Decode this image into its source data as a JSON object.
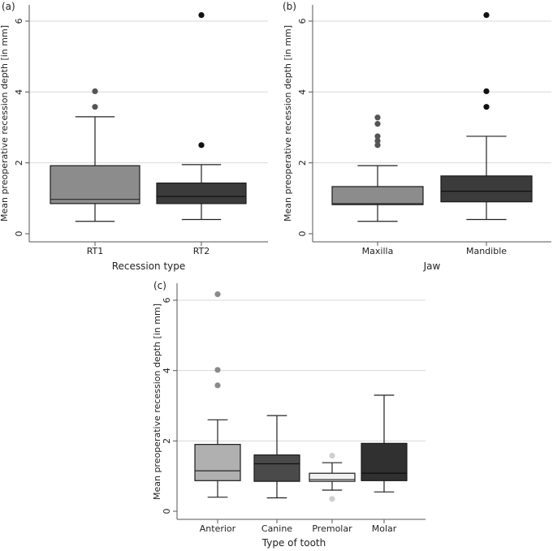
{
  "chart_data": [
    {
      "type": "boxplot",
      "panel_label": "(a)",
      "title": "",
      "xlabel": "Recession type",
      "ylabel": "Mean preoperative recession depth [in mm]",
      "ylim": [
        0,
        6.2
      ],
      "yticks": [
        0,
        2,
        4,
        6
      ],
      "grid": true,
      "categories": [
        "RT1",
        "RT2"
      ],
      "boxes": [
        {
          "name": "RT1",
          "whisker_low": 0.35,
          "q1": 0.85,
          "median": 0.97,
          "q3": 1.92,
          "whisker_high": 3.3,
          "outliers": [
            3.58,
            4.02
          ],
          "color": "#8c8c8c",
          "outlier_color": "#555555"
        },
        {
          "name": "RT2",
          "whisker_low": 0.4,
          "q1": 0.85,
          "median": 1.05,
          "q3": 1.43,
          "whisker_high": 1.95,
          "outliers": [
            2.5,
            6.17
          ],
          "color": "#3b3b3b",
          "outlier_color": "#111111"
        }
      ]
    },
    {
      "type": "boxplot",
      "panel_label": "(b)",
      "title": "",
      "xlabel": "Jaw",
      "ylabel": "Mean preoperative recession depth [in mm]",
      "ylim": [
        0,
        6.2
      ],
      "yticks": [
        0,
        2,
        4,
        6
      ],
      "grid": true,
      "categories": [
        "Maxilla",
        "Mandible"
      ],
      "boxes": [
        {
          "name": "Maxilla",
          "whisker_low": 0.35,
          "q1": 0.82,
          "median": 0.85,
          "q3": 1.33,
          "whisker_high": 1.92,
          "outliers": [
            2.5,
            2.62,
            2.75,
            3.1,
            3.28
          ],
          "color": "#8c8c8c",
          "outlier_color": "#555555"
        },
        {
          "name": "Mandible",
          "whisker_low": 0.4,
          "q1": 0.9,
          "median": 1.2,
          "q3": 1.63,
          "whisker_high": 2.75,
          "outliers": [
            3.58,
            4.02,
            6.17
          ],
          "color": "#3b3b3b",
          "outlier_color": "#111111"
        }
      ]
    },
    {
      "type": "boxplot",
      "panel_label": "(c)",
      "title": "",
      "xlabel": "Type of tooth",
      "ylabel": "Mean preoperative recession depth [in mm]",
      "ylim": [
        0,
        6.2
      ],
      "yticks": [
        0,
        2,
        4,
        6
      ],
      "grid": true,
      "categories": [
        "Anterior",
        "Canine",
        "Premolar",
        "Molar"
      ],
      "boxes": [
        {
          "name": "Anterior",
          "whisker_low": 0.4,
          "q1": 0.87,
          "median": 1.15,
          "q3": 1.9,
          "whisker_high": 2.6,
          "outliers": [
            3.58,
            4.02,
            6.17
          ],
          "color": "#b0b0b0",
          "outlier_color": "#8a8a8a"
        },
        {
          "name": "Canine",
          "whisker_low": 0.38,
          "q1": 0.85,
          "median": 1.35,
          "q3": 1.6,
          "whisker_high": 2.72,
          "outliers": [],
          "color": "#4a4a4a",
          "outlier_color": "#333333"
        },
        {
          "name": "Premolar",
          "whisker_low": 0.6,
          "q1": 0.85,
          "median": 0.9,
          "q3": 1.08,
          "whisker_high": 1.38,
          "outliers": [
            0.35,
            1.58
          ],
          "color": "#f2f2f2",
          "outlier_color": "#cfcfcf"
        },
        {
          "name": "Molar",
          "whisker_low": 0.55,
          "q1": 0.87,
          "median": 1.08,
          "q3": 1.93,
          "whisker_high": 3.3,
          "outliers": [],
          "color": "#303030",
          "outlier_color": "#222222"
        }
      ]
    }
  ]
}
